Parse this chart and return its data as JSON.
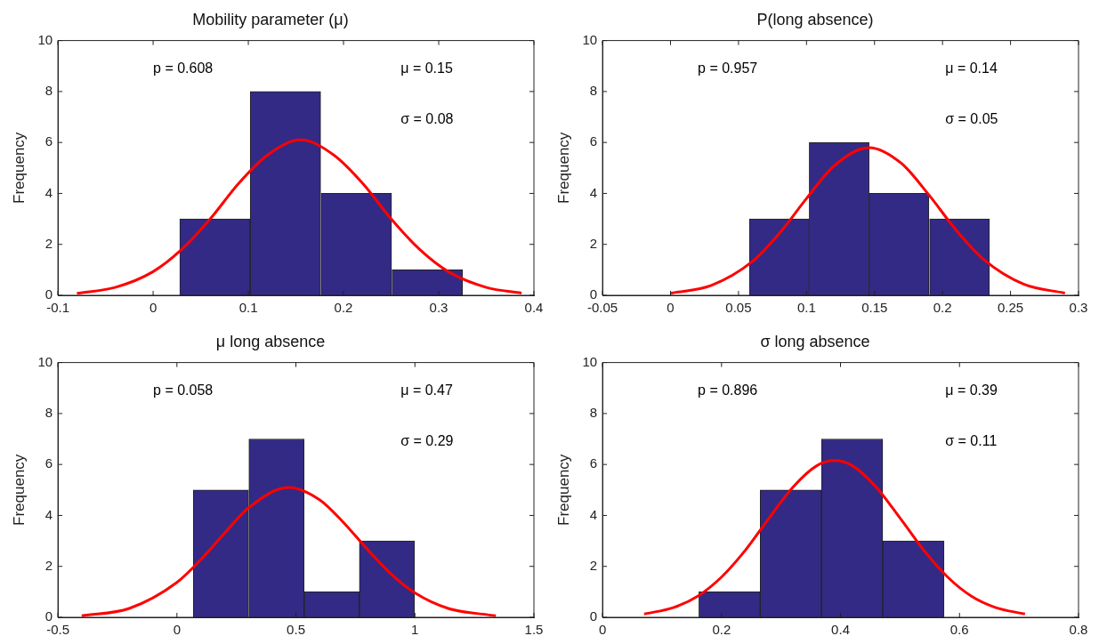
{
  "chart_data": [
    {
      "type": "histogram",
      "title": "Mobility parameter (μ)",
      "ylabel": "Frequency",
      "xlim": [
        -0.1,
        0.4
      ],
      "xticks": [
        -0.1,
        0,
        0.1,
        0.2,
        0.3,
        0.4
      ],
      "ylim": [
        0,
        10
      ],
      "yticks": [
        0,
        2,
        4,
        6,
        8,
        10
      ],
      "annotations": [
        "p = 0.608",
        "μ = 0.15",
        "σ = 0.08"
      ],
      "series": [
        {
          "color": "#332a85",
          "bins": [
            0.028,
            0.102,
            0.176,
            0.251,
            0.325
          ],
          "values": [
            3,
            8,
            4,
            1
          ]
        },
        {
          "type": "line",
          "color": "#ff0000",
          "x": [
            -0.08,
            -0.04,
            0,
            0.03,
            0.06,
            0.09,
            0.12,
            0.155,
            0.19,
            0.22,
            0.25,
            0.28,
            0.31,
            0.35,
            0.387
          ],
          "values": [
            0.08,
            0.31,
            0.93,
            1.8,
            3.0,
            4.4,
            5.5,
            6.1,
            5.5,
            4.4,
            3.0,
            1.8,
            0.93,
            0.31,
            0.09
          ]
        }
      ]
    },
    {
      "type": "histogram",
      "title": "P(long absence)",
      "ylabel": "Frequency",
      "xlim": [
        -0.05,
        0.3
      ],
      "xticks": [
        -0.05,
        0,
        0.05,
        0.1,
        0.15,
        0.2,
        0.25,
        0.3
      ],
      "ylim": [
        0,
        10
      ],
      "yticks": [
        0,
        2,
        4,
        6,
        8,
        10
      ],
      "annotations": [
        "p = 0.957",
        "μ = 0.14",
        "σ = 0.05"
      ],
      "series": [
        {
          "color": "#332a85",
          "bins": [
            0.058,
            0.102,
            0.146,
            0.19,
            0.235
          ],
          "values": [
            3,
            6,
            4,
            3
          ]
        },
        {
          "type": "line",
          "color": "#ff0000",
          "x": [
            0,
            0.03,
            0.06,
            0.08,
            0.1,
            0.12,
            0.146,
            0.17,
            0.19,
            0.21,
            0.23,
            0.26,
            0.29
          ],
          "values": [
            0.08,
            0.39,
            1.32,
            2.43,
            3.8,
            5.07,
            5.8,
            5.17,
            3.94,
            2.56,
            1.42,
            0.43,
            0.09
          ]
        }
      ]
    },
    {
      "type": "histogram",
      "title": "μ long absence",
      "ylabel": "Frequency",
      "xlim": [
        -0.5,
        1.5
      ],
      "xticks": [
        -0.5,
        0,
        0.5,
        1,
        1.5
      ],
      "ylim": [
        0,
        10
      ],
      "yticks": [
        0,
        2,
        4,
        6,
        8,
        10
      ],
      "annotations": [
        "p = 0.058",
        "μ = 0.47",
        "σ = 0.29"
      ],
      "series": [
        {
          "color": "#332a85",
          "bins": [
            0.069,
            0.301,
            0.536,
            0.765,
            1.0
          ],
          "values": [
            5,
            7,
            1,
            3
          ]
        },
        {
          "type": "line",
          "color": "#ff0000",
          "x": [
            -0.4,
            -0.2,
            0,
            0.1,
            0.2,
            0.3,
            0.47,
            0.6,
            0.7,
            0.8,
            0.9,
            1.0,
            1.14,
            1.34
          ],
          "values": [
            0.06,
            0.35,
            1.37,
            2.26,
            3.3,
            4.29,
            5.1,
            4.61,
            3.72,
            2.67,
            1.7,
            0.96,
            0.35,
            0.06
          ]
        }
      ]
    },
    {
      "type": "histogram",
      "title": "σ long absence",
      "ylabel": "Frequency",
      "xlim": [
        0,
        0.8
      ],
      "xticks": [
        0,
        0.2,
        0.4,
        0.6,
        0.8
      ],
      "ylim": [
        0,
        10
      ],
      "yticks": [
        0,
        2,
        4,
        6,
        8,
        10
      ],
      "annotations": [
        "p = 0.896",
        "μ = 0.39",
        "σ = 0.11"
      ],
      "series": [
        {
          "color": "#332a85",
          "bins": [
            0.162,
            0.265,
            0.368,
            0.471,
            0.574
          ],
          "values": [
            1,
            5,
            7,
            3
          ]
        },
        {
          "type": "line",
          "color": "#ff0000",
          "x": [
            0.07,
            0.12,
            0.16,
            0.2,
            0.24,
            0.28,
            0.32,
            0.36,
            0.39,
            0.42,
            0.46,
            0.5,
            0.54,
            0.58,
            0.62,
            0.66,
            0.71
          ],
          "values": [
            0.13,
            0.39,
            0.83,
            1.58,
            2.63,
            3.9,
            5.11,
            5.95,
            6.15,
            5.95,
            5.11,
            3.9,
            2.63,
            1.58,
            0.83,
            0.39,
            0.13
          ]
        }
      ]
    }
  ]
}
